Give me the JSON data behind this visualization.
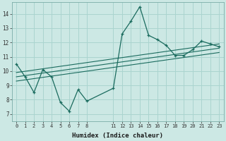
{
  "xlabel": "Humidex (Indice chaleur)",
  "bg_color": "#cce8e4",
  "grid_color": "#aad4cf",
  "line_color": "#1a6b5e",
  "xlim": [
    -0.5,
    23.5
  ],
  "ylim": [
    6.5,
    14.8
  ],
  "xticks": [
    0,
    1,
    2,
    3,
    4,
    5,
    6,
    7,
    8,
    11,
    12,
    13,
    14,
    15,
    16,
    17,
    18,
    19,
    20,
    21,
    22,
    23
  ],
  "yticks": [
    7,
    8,
    9,
    10,
    11,
    12,
    13,
    14
  ],
  "series_main": {
    "x": [
      0,
      1,
      2,
      3,
      4,
      5,
      6,
      7,
      8,
      11,
      12,
      13,
      14,
      15,
      16,
      17,
      18,
      19,
      20,
      21,
      22,
      23
    ],
    "y": [
      10.5,
      9.6,
      8.5,
      10.1,
      9.6,
      7.8,
      7.2,
      8.7,
      7.9,
      8.8,
      12.6,
      13.5,
      14.5,
      12.5,
      12.2,
      11.8,
      11.1,
      11.1,
      11.5,
      12.1,
      11.9,
      11.7
    ]
  },
  "trend_lines": [
    {
      "x": [
        0,
        23
      ],
      "y": [
        9.3,
        11.3
      ]
    },
    {
      "x": [
        0,
        23
      ],
      "y": [
        9.6,
        11.6
      ]
    },
    {
      "x": [
        0,
        23
      ],
      "y": [
        9.9,
        11.9
      ]
    }
  ]
}
